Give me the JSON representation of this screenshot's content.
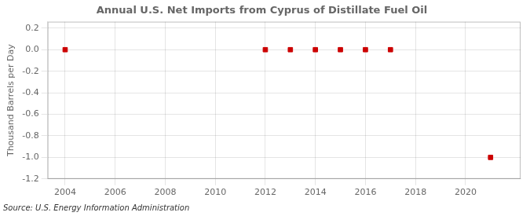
{
  "chart_data": {
    "type": "scatter",
    "title": "Annual U.S. Net Imports from Cyprus of Distillate Fuel Oil",
    "ylabel": "Thousand Barrels per Day",
    "annotations": [
      "Source: U.S. Energy Information Administration"
    ],
    "x": [
      2004,
      2012,
      2013,
      2014,
      2015,
      2016,
      2017,
      2021
    ],
    "values": [
      0.0,
      0.0,
      0.0,
      0.0,
      0.0,
      0.0,
      0.0,
      -1.0
    ],
    "color": "#cc0000",
    "marker": "square",
    "xlim": [
      2003.3,
      2022.2
    ],
    "ylim": [
      -1.2,
      0.26
    ],
    "xticks": [
      2004,
      2006,
      2008,
      2010,
      2012,
      2014,
      2016,
      2018,
      2020
    ],
    "yticks": [
      0.2,
      {
        "value": 0,
        "label": "0.0"
      },
      -0.2,
      -0.4,
      -0.6,
      -0.8,
      {
        "value": -1,
        "label": "-1.0"
      },
      -1.2
    ],
    "grid": true
  }
}
